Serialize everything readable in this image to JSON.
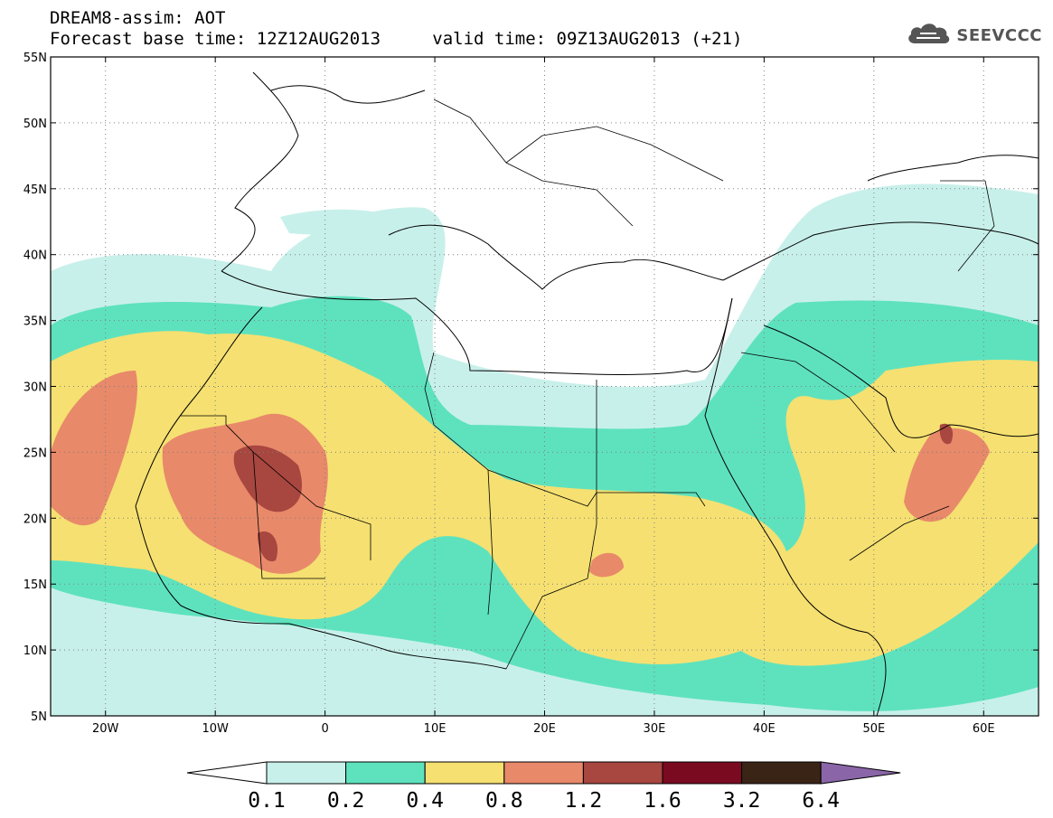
{
  "header": {
    "line1": "DREAM8-assim: AOT",
    "line2_base": "Forecast base time: 12Z12AUG2013",
    "line2_valid": "valid time: 09Z13AUG2013 (+21)"
  },
  "logo": {
    "icon": "cloud-icon",
    "text": "SEEVCCC"
  },
  "map": {
    "lon_range": [
      -25,
      65
    ],
    "lat_range": [
      5,
      55
    ],
    "lon_ticks": [
      {
        "value": -20,
        "label": "20W"
      },
      {
        "value": -10,
        "label": "10W"
      },
      {
        "value": 0,
        "label": "0"
      },
      {
        "value": 10,
        "label": "10E"
      },
      {
        "value": 20,
        "label": "20E"
      },
      {
        "value": 30,
        "label": "30E"
      },
      {
        "value": 40,
        "label": "40E"
      },
      {
        "value": 50,
        "label": "50E"
      },
      {
        "value": 60,
        "label": "60E"
      }
    ],
    "lat_ticks": [
      {
        "value": 55,
        "label": "55N"
      },
      {
        "value": 50,
        "label": "50N"
      },
      {
        "value": 45,
        "label": "45N"
      },
      {
        "value": 40,
        "label": "40N"
      },
      {
        "value": 35,
        "label": "35N"
      },
      {
        "value": 30,
        "label": "30N"
      },
      {
        "value": 25,
        "label": "25N"
      },
      {
        "value": 20,
        "label": "20N"
      },
      {
        "value": 15,
        "label": "15N"
      },
      {
        "value": 10,
        "label": "10N"
      },
      {
        "value": 5,
        "label": "5N"
      }
    ],
    "grid": "dotted"
  },
  "colorbar": {
    "colors": [
      "#ffffff",
      "#c8f0ea",
      "#5ee2be",
      "#f5e071",
      "#e8896a",
      "#a84640",
      "#7a0a20",
      "#3a2416",
      "#8a66a8"
    ],
    "labels": [
      "0.1",
      "0.2",
      "0.4",
      "0.8",
      "1.2",
      "1.6",
      "3.2",
      "6.4"
    ]
  }
}
